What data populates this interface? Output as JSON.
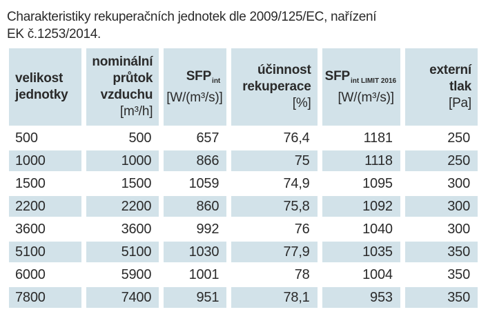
{
  "title_lines": [
    "Charakteristiky rekuperačních jednotek dle 2009/125/EC, nařízení",
    "EK č.1253/2014."
  ],
  "colors": {
    "cell_blue": "#d2e2e9",
    "text": "#2a2a2a",
    "page_bg": "#ffffff"
  },
  "table": {
    "headers": [
      {
        "lines": [
          "velikost",
          "jednotky"
        ]
      },
      {
        "lines": [
          "nominální",
          "průtok",
          "vzduchu"
        ],
        "unit": "[m³/h]"
      },
      {
        "main": "SFP",
        "sub": "int",
        "unit": "[W/(m³/s)]"
      },
      {
        "lines": [
          "účinnost",
          "rekuperace"
        ],
        "unit": "[%]"
      },
      {
        "main": "SFP",
        "sub": "int LIMIT 2016",
        "unit": "[W/(m³/s)]"
      },
      {
        "lines": [
          "externí",
          "tlak"
        ],
        "unit": "[Pa]"
      }
    ],
    "rows": [
      [
        "500",
        "500",
        "657",
        "76,4",
        "1181",
        "250"
      ],
      [
        "1000",
        "1000",
        "866",
        "75",
        "1118",
        "250"
      ],
      [
        "1500",
        "1500",
        "1059",
        "74,9",
        "1095",
        "300"
      ],
      [
        "2200",
        "2200",
        "860",
        "75,8",
        "1092",
        "300"
      ],
      [
        "3600",
        "3600",
        "992",
        "76",
        "1040",
        "300"
      ],
      [
        "5100",
        "5100",
        "1030",
        "77,9",
        "1035",
        "350"
      ],
      [
        "6000",
        "5900",
        "1001",
        "78",
        "1004",
        "350"
      ],
      [
        "7800",
        "7400",
        "951",
        "78,1",
        "953",
        "350"
      ]
    ]
  }
}
